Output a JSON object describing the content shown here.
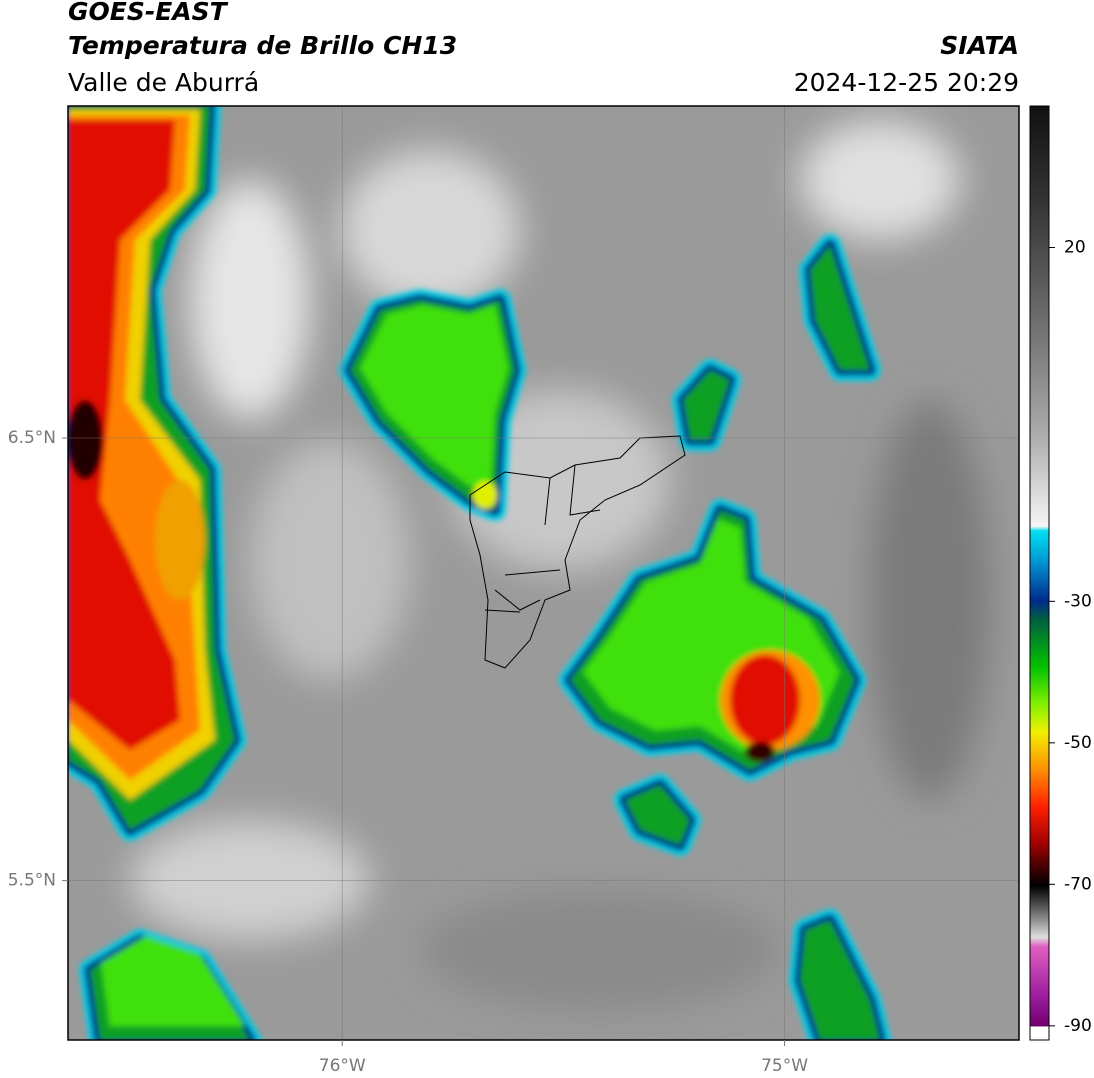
{
  "header": {
    "title": "GOES-EAST",
    "subtitle": "Temperatura de Brillo CH13",
    "region": "Valle de Aburrá",
    "source": "SIATA",
    "datetime": "2024-12-25 20:29"
  },
  "map": {
    "xlim": [
      -76.62,
      -74.47
    ],
    "ylim": [
      5.14,
      7.25
    ],
    "xticks": [
      {
        "value": -76,
        "label": "76°W"
      },
      {
        "value": -75,
        "label": "75°W"
      }
    ],
    "yticks": [
      {
        "value": 6.5,
        "label": "6.5°N"
      },
      {
        "value": 5.5,
        "label": "5.5°N"
      }
    ],
    "grid": true
  },
  "colorbar": {
    "lim": [
      -92,
      40
    ],
    "ticks": [
      20,
      -30,
      -50,
      -70,
      -90
    ]
  }
}
